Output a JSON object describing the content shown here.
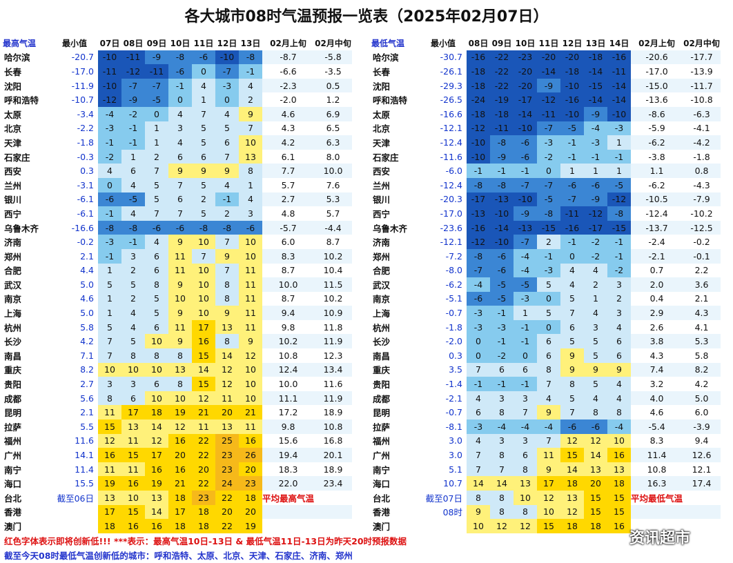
{
  "title": "各大城市08时气温预报一览表（2025年02月07日）",
  "left": {
    "label": "最高气温",
    "min_label": "最小值",
    "days": [
      "07日",
      "08日",
      "09日",
      "10日",
      "11日",
      "12日",
      "13日"
    ],
    "avg": [
      "02月上旬",
      "02月中旬"
    ],
    "rows": [
      {
        "city": "哈尔滨",
        "min": "-20.7",
        "v": [
          "-10",
          "-11",
          "-9",
          "-8",
          "-6",
          "-10",
          "-8"
        ],
        "a": [
          "-8.7",
          "-5.8"
        ]
      },
      {
        "city": "长春",
        "min": "-17.0",
        "v": [
          "-11",
          "-12",
          "-11",
          "-6",
          "0",
          "-7",
          "-1"
        ],
        "a": [
          "-6.6",
          "-3.5"
        ]
      },
      {
        "city": "沈阳",
        "min": "-11.9",
        "v": [
          "-10",
          "-7",
          "-7",
          "-1",
          "4",
          "-3",
          "4"
        ],
        "a": [
          "-2.3",
          "0.5"
        ]
      },
      {
        "city": "呼和浩特",
        "min": "-10.7",
        "v": [
          "-12",
          "-9",
          "-5",
          "0",
          "1",
          "0",
          "2"
        ],
        "a": [
          "-2.0",
          "1.2"
        ]
      },
      {
        "city": "太原",
        "min": "-3.4",
        "v": [
          "-4",
          "-2",
          "0",
          "4",
          "7",
          "4",
          "9"
        ],
        "a": [
          "4.6",
          "6.9"
        ]
      },
      {
        "city": "北京",
        "min": "-2.2",
        "v": [
          "-3",
          "-1",
          "1",
          "3",
          "5",
          "5",
          "7"
        ],
        "a": [
          "4.3",
          "6.5"
        ]
      },
      {
        "city": "天津",
        "min": "-1.8",
        "v": [
          "-1",
          "-1",
          "1",
          "4",
          "5",
          "6",
          "10"
        ],
        "a": [
          "4.2",
          "6.3"
        ]
      },
      {
        "city": "石家庄",
        "min": "-0.3",
        "v": [
          "-2",
          "1",
          "2",
          "6",
          "6",
          "7",
          "13"
        ],
        "a": [
          "6.1",
          "8.0"
        ]
      },
      {
        "city": "西安",
        "min": "0.3",
        "v": [
          "4",
          "6",
          "7",
          "9",
          "9",
          "9",
          "8"
        ],
        "a": [
          "7.7",
          "10.0"
        ]
      },
      {
        "city": "兰州",
        "min": "-3.1",
        "v": [
          "0",
          "4",
          "5",
          "7",
          "5",
          "4",
          "1"
        ],
        "a": [
          "5.7",
          "7.6"
        ]
      },
      {
        "city": "银川",
        "min": "-6.1",
        "v": [
          "-6",
          "-5",
          "5",
          "6",
          "2",
          "-1",
          "4"
        ],
        "a": [
          "2.7",
          "5.3"
        ]
      },
      {
        "city": "西宁",
        "min": "-6.1",
        "v": [
          "-1",
          "4",
          "7",
          "7",
          "5",
          "2",
          "3"
        ],
        "a": [
          "4.8",
          "5.7"
        ]
      },
      {
        "city": "乌鲁木齐",
        "min": "-16.6",
        "v": [
          "-8",
          "-8",
          "-6",
          "-6",
          "-8",
          "-8",
          "-6"
        ],
        "a": [
          "-5.7",
          "-4.4"
        ]
      },
      {
        "city": "济南",
        "min": "-0.2",
        "v": [
          "-3",
          "-1",
          "4",
          "9",
          "10",
          "7",
          "10"
        ],
        "a": [
          "6.0",
          "8.7"
        ]
      },
      {
        "city": "郑州",
        "min": "2.1",
        "v": [
          "-1",
          "3",
          "6",
          "11",
          "7",
          "9",
          "10"
        ],
        "a": [
          "8.3",
          "10.2"
        ]
      },
      {
        "city": "合肥",
        "min": "4.4",
        "v": [
          "1",
          "2",
          "6",
          "11",
          "10",
          "7",
          "11"
        ],
        "a": [
          "8.7",
          "10.4"
        ]
      },
      {
        "city": "武汉",
        "min": "5.0",
        "v": [
          "5",
          "5",
          "8",
          "9",
          "10",
          "8",
          "11"
        ],
        "a": [
          "10.0",
          "11.5"
        ]
      },
      {
        "city": "南京",
        "min": "4.6",
        "v": [
          "1",
          "2",
          "5",
          "10",
          "10",
          "8",
          "11"
        ],
        "a": [
          "8.7",
          "10.2"
        ]
      },
      {
        "city": "上海",
        "min": "5.0",
        "v": [
          "1",
          "4",
          "5",
          "9",
          "10",
          "9",
          "11"
        ],
        "a": [
          "9.4",
          "10.9"
        ]
      },
      {
        "city": "杭州",
        "min": "5.8",
        "v": [
          "5",
          "4",
          "6",
          "11",
          "17",
          "13",
          "11"
        ],
        "a": [
          "9.8",
          "11.8"
        ]
      },
      {
        "city": "长沙",
        "min": "4.2",
        "v": [
          "7",
          "5",
          "10",
          "9",
          "16",
          "8",
          "9"
        ],
        "a": [
          "10.2",
          "11.9"
        ]
      },
      {
        "city": "南昌",
        "min": "7.1",
        "v": [
          "7",
          "8",
          "8",
          "8",
          "15",
          "14",
          "12"
        ],
        "a": [
          "10.8",
          "12.3"
        ]
      },
      {
        "city": "重庆",
        "min": "8.2",
        "v": [
          "10",
          "10",
          "10",
          "13",
          "14",
          "12",
          "10"
        ],
        "a": [
          "12.4",
          "13.4"
        ]
      },
      {
        "city": "贵阳",
        "min": "2.7",
        "v": [
          "3",
          "3",
          "6",
          "8",
          "15",
          "12",
          "10"
        ],
        "a": [
          "10.0",
          "11.6"
        ]
      },
      {
        "city": "成都",
        "min": "5.6",
        "v": [
          "8",
          "6",
          "10",
          "10",
          "12",
          "11",
          "10"
        ],
        "a": [
          "11.1",
          "11.9"
        ]
      },
      {
        "city": "昆明",
        "min": "2.1",
        "v": [
          "11",
          "17",
          "18",
          "19",
          "21",
          "20",
          "21"
        ],
        "a": [
          "17.2",
          "18.9"
        ]
      },
      {
        "city": "拉萨",
        "min": "5.5",
        "v": [
          "15",
          "13",
          "14",
          "12",
          "11",
          "13",
          "11"
        ],
        "a": [
          "9.8",
          "10.8"
        ]
      },
      {
        "city": "福州",
        "min": "11.6",
        "v": [
          "12",
          "11",
          "12",
          "16",
          "22",
          "25",
          "16"
        ],
        "a": [
          "15.6",
          "16.8"
        ]
      },
      {
        "city": "广州",
        "min": "14.1",
        "v": [
          "16",
          "15",
          "17",
          "20",
          "22",
          "23",
          "26"
        ],
        "a": [
          "19.4",
          "20.1"
        ]
      },
      {
        "city": "南宁",
        "min": "11.4",
        "v": [
          "11",
          "11",
          "16",
          "16",
          "20",
          "23",
          "20"
        ],
        "a": [
          "18.3",
          "18.9"
        ]
      },
      {
        "city": "海口",
        "min": "15.5",
        "v": [
          "19",
          "16",
          "19",
          "21",
          "22",
          "24",
          "23"
        ],
        "a": [
          "22.0",
          "23.4"
        ]
      },
      {
        "city": "台北",
        "min": "截至06日",
        "v": [
          "13",
          "10",
          "13",
          "18",
          "23",
          "22",
          "18"
        ],
        "a": [
          "平均最高气温",
          ""
        ]
      },
      {
        "city": "香港",
        "min": "",
        "v": [
          "17",
          "15",
          "14",
          "17",
          "18",
          "20",
          "20"
        ],
        "a": [
          "",
          ""
        ]
      },
      {
        "city": "澳门",
        "min": "",
        "v": [
          "18",
          "16",
          "16",
          "18",
          "18",
          "22",
          "19"
        ],
        "a": [
          "",
          ""
        ]
      }
    ]
  },
  "right": {
    "label": "最低气温",
    "min_label": "最小值",
    "days": [
      "08日",
      "09日",
      "10日",
      "11日",
      "12日",
      "13日",
      "14日"
    ],
    "avg": [
      "02月上旬",
      "02月中旬"
    ],
    "rows": [
      {
        "city": "哈尔滨",
        "min": "-30.7",
        "v": [
          "-16",
          "-22",
          "-23",
          "-20",
          "-20",
          "-18",
          "-16"
        ],
        "a": [
          "-20.6",
          "-17.7"
        ]
      },
      {
        "city": "长春",
        "min": "-26.1",
        "v": [
          "-18",
          "-22",
          "-20",
          "-14",
          "-18",
          "-14",
          "-11"
        ],
        "a": [
          "-17.0",
          "-13.9"
        ]
      },
      {
        "city": "沈阳",
        "min": "-29.3",
        "v": [
          "-18",
          "-22",
          "-20",
          "-9",
          "-10",
          "-15",
          "-14"
        ],
        "a": [
          "-15.0",
          "-11.7"
        ]
      },
      {
        "city": "呼和浩特",
        "min": "-26.5",
        "v": [
          "-24",
          "-19",
          "-17",
          "-12",
          "-16",
          "-14",
          "-14"
        ],
        "a": [
          "-13.6",
          "-10.8"
        ]
      },
      {
        "city": "太原",
        "min": "-16.6",
        "v": [
          "-18",
          "-18",
          "-14",
          "-11",
          "-10",
          "-9",
          "-10"
        ],
        "a": [
          "-8.6",
          "-6.3"
        ]
      },
      {
        "city": "北京",
        "min": "-12.1",
        "v": [
          "-12",
          "-11",
          "-10",
          "-7",
          "-5",
          "-4",
          "-3"
        ],
        "a": [
          "-5.9",
          "-4.1"
        ]
      },
      {
        "city": "天津",
        "min": "-12.4",
        "v": [
          "-10",
          "-8",
          "-6",
          "-3",
          "-1",
          "-3",
          "1"
        ],
        "a": [
          "-6.2",
          "-4.2"
        ]
      },
      {
        "city": "石家庄",
        "min": "-11.6",
        "v": [
          "-10",
          "-9",
          "-6",
          "-2",
          "-1",
          "-1",
          "-1"
        ],
        "a": [
          "-3.8",
          "-1.8"
        ]
      },
      {
        "city": "西安",
        "min": "-6.0",
        "v": [
          "-1",
          "-1",
          "-1",
          "0",
          "1",
          "1",
          "1"
        ],
        "a": [
          "1.1",
          "0.8"
        ]
      },
      {
        "city": "兰州",
        "min": "-12.4",
        "v": [
          "-8",
          "-8",
          "-7",
          "-7",
          "-6",
          "-6",
          "-5"
        ],
        "a": [
          "-6.2",
          "-4.3"
        ]
      },
      {
        "city": "银川",
        "min": "-20.3",
        "v": [
          "-17",
          "-13",
          "-10",
          "-5",
          "-7",
          "-9",
          "-12"
        ],
        "a": [
          "-10.5",
          "-7.9"
        ]
      },
      {
        "city": "西宁",
        "min": "-17.0",
        "v": [
          "-13",
          "-10",
          "-9",
          "-8",
          "-11",
          "-12",
          "-8"
        ],
        "a": [
          "-12.4",
          "-10.2"
        ]
      },
      {
        "city": "乌鲁木齐",
        "min": "-23.6",
        "v": [
          "-16",
          "-14",
          "-13",
          "-15",
          "-16",
          "-17",
          "-15"
        ],
        "a": [
          "-13.7",
          "-12.5"
        ]
      },
      {
        "city": "济南",
        "min": "-12.1",
        "v": [
          "-12",
          "-10",
          "-7",
          "2",
          "-1",
          "-2",
          "-1"
        ],
        "a": [
          "-2.4",
          "-0.2"
        ]
      },
      {
        "city": "郑州",
        "min": "-7.2",
        "v": [
          "-8",
          "-6",
          "-4",
          "-1",
          "0",
          "-2",
          "-1"
        ],
        "a": [
          "-2.1",
          "-0.1"
        ]
      },
      {
        "city": "合肥",
        "min": "-8.0",
        "v": [
          "-7",
          "-6",
          "-4",
          "-3",
          "4",
          "4",
          "-2"
        ],
        "a": [
          "0.7",
          "2.2"
        ]
      },
      {
        "city": "武汉",
        "min": "-6.2",
        "v": [
          "-4",
          "-5",
          "-5",
          "5",
          "4",
          "2",
          "3"
        ],
        "a": [
          "2.0",
          "3.6"
        ]
      },
      {
        "city": "南京",
        "min": "-5.1",
        "v": [
          "-6",
          "-5",
          "-3",
          "0",
          "5",
          "1",
          "2"
        ],
        "a": [
          "0.4",
          "2.1"
        ]
      },
      {
        "city": "上海",
        "min": "-0.7",
        "v": [
          "-3",
          "-1",
          "1",
          "5",
          "7",
          "4",
          "3"
        ],
        "a": [
          "2.9",
          "4.3"
        ]
      },
      {
        "city": "杭州",
        "min": "-1.8",
        "v": [
          "-3",
          "-3",
          "-1",
          "0",
          "6",
          "3",
          "4"
        ],
        "a": [
          "2.6",
          "4.1"
        ]
      },
      {
        "city": "长沙",
        "min": "-2.0",
        "v": [
          "0",
          "-1",
          "-1",
          "6",
          "5",
          "5",
          "6"
        ],
        "a": [
          "3.8",
          "5.3"
        ]
      },
      {
        "city": "南昌",
        "min": "0.3",
        "v": [
          "0",
          "-2",
          "0",
          "6",
          "9",
          "5",
          "6"
        ],
        "a": [
          "4.3",
          "5.8"
        ]
      },
      {
        "city": "重庆",
        "min": "3.5",
        "v": [
          "7",
          "6",
          "6",
          "8",
          "9",
          "9",
          "9"
        ],
        "a": [
          "7.4",
          "8.2"
        ]
      },
      {
        "city": "贵阳",
        "min": "-1.4",
        "v": [
          "-1",
          "-1",
          "-1",
          "7",
          "8",
          "5",
          "4"
        ],
        "a": [
          "3.2",
          "4.2"
        ]
      },
      {
        "city": "成都",
        "min": "-2.1",
        "v": [
          "4",
          "3",
          "3",
          "4",
          "5",
          "4",
          "4"
        ],
        "a": [
          "4.0",
          "5.0"
        ]
      },
      {
        "city": "昆明",
        "min": "-0.7",
        "v": [
          "6",
          "8",
          "7",
          "9",
          "7",
          "8",
          "8"
        ],
        "a": [
          "4.6",
          "6.0"
        ]
      },
      {
        "city": "拉萨",
        "min": "-8.1",
        "v": [
          "-3",
          "-4",
          "-4",
          "-4",
          "-6",
          "-6",
          "-4"
        ],
        "a": [
          "-5.4",
          "-3.9"
        ]
      },
      {
        "city": "福州",
        "min": "3.0",
        "v": [
          "4",
          "3",
          "3",
          "7",
          "12",
          "12",
          "10"
        ],
        "a": [
          "8.3",
          "9.4"
        ]
      },
      {
        "city": "广州",
        "min": "3.0",
        "v": [
          "7",
          "8",
          "6",
          "11",
          "15",
          "14",
          "16"
        ],
        "a": [
          "11.4",
          "12.6"
        ]
      },
      {
        "city": "南宁",
        "min": "5.1",
        "v": [
          "7",
          "7",
          "8",
          "9",
          "14",
          "13",
          "13"
        ],
        "a": [
          "10.8",
          "12.1"
        ]
      },
      {
        "city": "海口",
        "min": "10.7",
        "v": [
          "14",
          "14",
          "13",
          "17",
          "18",
          "20",
          "18"
        ],
        "a": [
          "16.3",
          "17.4"
        ]
      },
      {
        "city": "台北",
        "min": "截至07日",
        "v": [
          "8",
          "8",
          "10",
          "12",
          "13",
          "15",
          "15"
        ],
        "a": [
          "平均最低气温",
          ""
        ]
      },
      {
        "city": "香港",
        "min": "08时",
        "v": [
          "9",
          "8",
          "8",
          "10",
          "12",
          "15",
          "15"
        ],
        "a": [
          "",
          ""
        ]
      },
      {
        "city": "澳门",
        "min": "",
        "v": [
          "10",
          "12",
          "12",
          "15",
          "18",
          "18",
          "16"
        ],
        "a": [
          "",
          ""
        ]
      }
    ]
  },
  "footer_line1": "红色字体表示即将创新低!!!  ***表示：最高气温10日-13日 & 最低气温11日-13日为昨天20时预报数据",
  "footer_line2": "截至今天08时最低气温创新低的城市：呼和浩特、太原、北京、天津、石家庄、济南、郑州",
  "watermark": "资讯超市",
  "colors": {
    "light_blue": "#cfe9f8",
    "mid_blue": "#86cbee",
    "blue": "#3b86d4",
    "dark_blue": "#1a56b8",
    "light_yellow": "#fff17a",
    "yellow": "#ffd800",
    "orange": "#f6b91a",
    "label_blue": "#2233cc",
    "alert_red": "#dd1111"
  }
}
